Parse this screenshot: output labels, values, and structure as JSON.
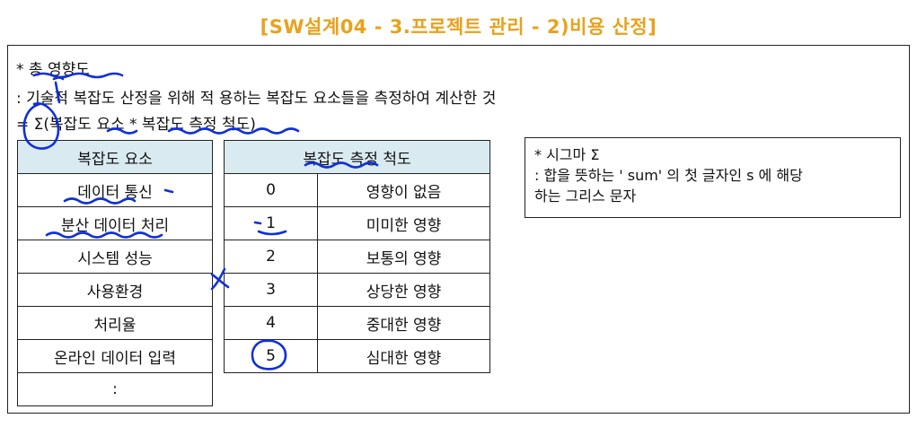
{
  "title": "[SW설계04 - 3.프로젝트 관리 - 2)비용 산정]",
  "section": {
    "heading": "* 총 영향도",
    "definition": ": 기술적 복잡도 산정을 위해 적 용하는 복잡도 요소들을 측정하여 계산한 것",
    "formula": "= Σ(복잡도 요소 * 복잡도 측정 척도)"
  },
  "elements_table": {
    "header": "복잡도 요소",
    "rows": [
      "데이터 통신",
      "분산 데이터 처리",
      "시스템 성능",
      "사용환경",
      "처리율",
      "온라인 데이터 입력",
      ":"
    ]
  },
  "scale_table": {
    "header": "복잡도 측정 척도",
    "rows": [
      {
        "score": "0",
        "meaning": "영향이 없음"
      },
      {
        "score": "1",
        "meaning": "미미한 영향"
      },
      {
        "score": "2",
        "meaning": "보통의 영향"
      },
      {
        "score": "3",
        "meaning": "상당한 영향"
      },
      {
        "score": "4",
        "meaning": "중대한 영향"
      },
      {
        "score": "5",
        "meaning": "심대한 영향"
      }
    ]
  },
  "sigma_note": {
    "title": "* 시그마 Σ",
    "line1": ": 합을 뜻하는 ' sum' 의 첫 글자인 s 에 해당",
    "line2": "하는 그리스 문자"
  },
  "annotation_color": "#1030d8"
}
